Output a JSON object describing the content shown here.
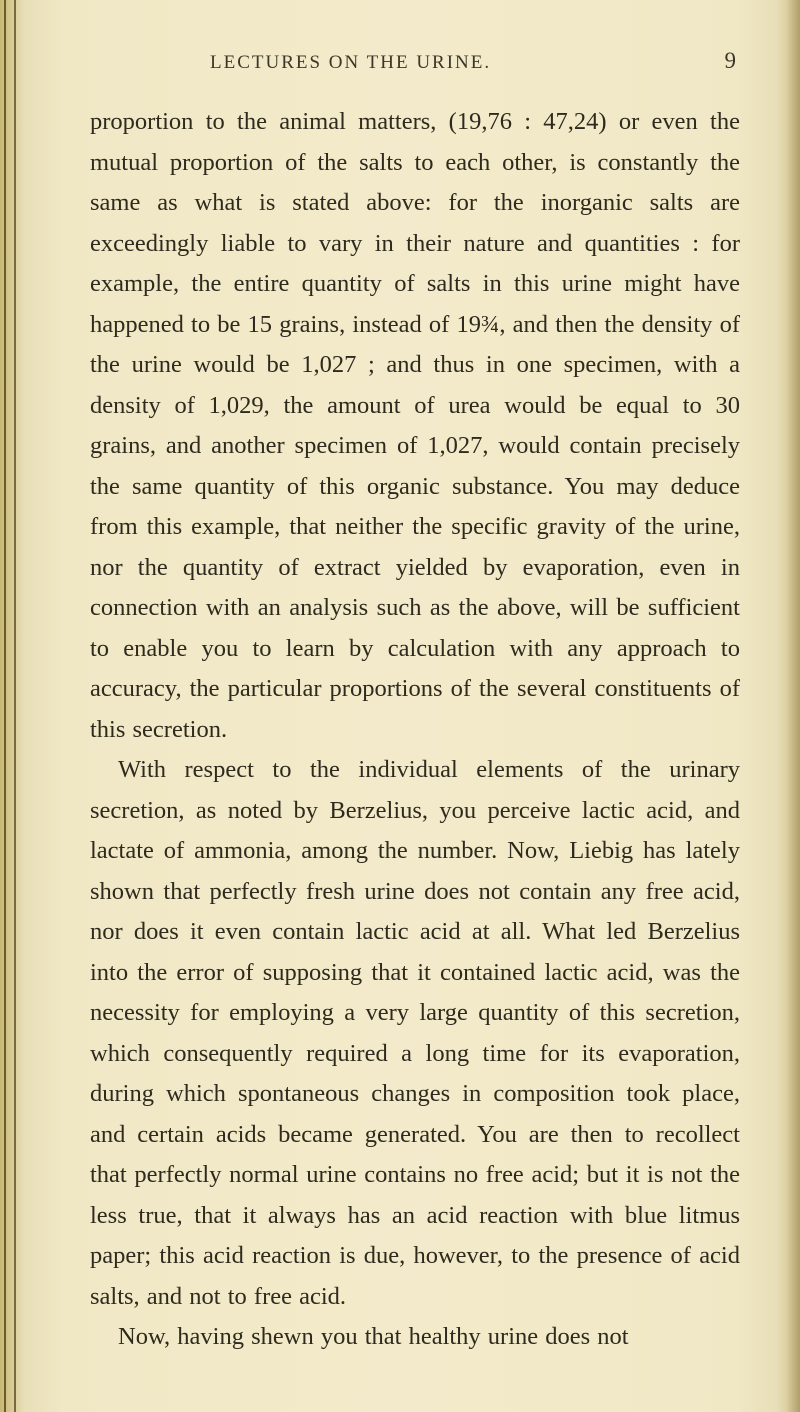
{
  "header": {
    "running_title": "LECTURES ON THE URINE.",
    "page_number": "9"
  },
  "paragraphs": {
    "p1": "proportion to the animal matters, (19,76 : 47,24) or even the mutual proportion of the salts to each other, is constantly the same as what is stated above: for the inorganic salts are exceedingly liable to vary in their nature and quantities : for example, the entire quantity of salts in this urine might have happened to be 15 grains, instead of 19¾, and then the density of the urine would be 1,027 ; and thus in one specimen, with a density of 1,029, the amount of urea would be equal to 30 grains, and another specimen of 1,027, would contain precisely the same quantity of this organic substance. You may deduce from this example, that neither the specific gravity of the urine, nor the quantity of extract yielded by evaporation, even in connection with an analysis such as the above, will be sufficient to enable you to learn by calculation with any approach to accuracy, the particular proportions of the several constituents of this secretion.",
    "p2": "With respect to the individual elements of the urinary secretion, as noted by Berzelius, you perceive lactic acid, and lactate of ammonia, among the number. Now, Liebig has lately shown that perfectly fresh urine does not contain any free acid, nor does it even contain lactic acid at all. What led Berzelius into the error of supposing that it contained lactic acid, was the necessity for employing a very large quantity of this secretion, which consequently required a long time for its evaporation, during which spontaneous changes in composition took place, and certain acids became generated. You are then to recollect that perfectly normal urine contains no free acid; but it is not the less true, that it always has an acid reaction with blue litmus paper; this acid reaction is due, however, to the presence of acid salts, and not to free acid.",
    "p3": "Now, having shewn you that healthy urine does not"
  },
  "style": {
    "bg_color": "#f0e8c5",
    "text_color": "#2f2a1e",
    "body_fontsize": 24.5,
    "body_lineheight": 40.5,
    "header_fontsize": 19,
    "pagenum_fontsize": 23
  }
}
